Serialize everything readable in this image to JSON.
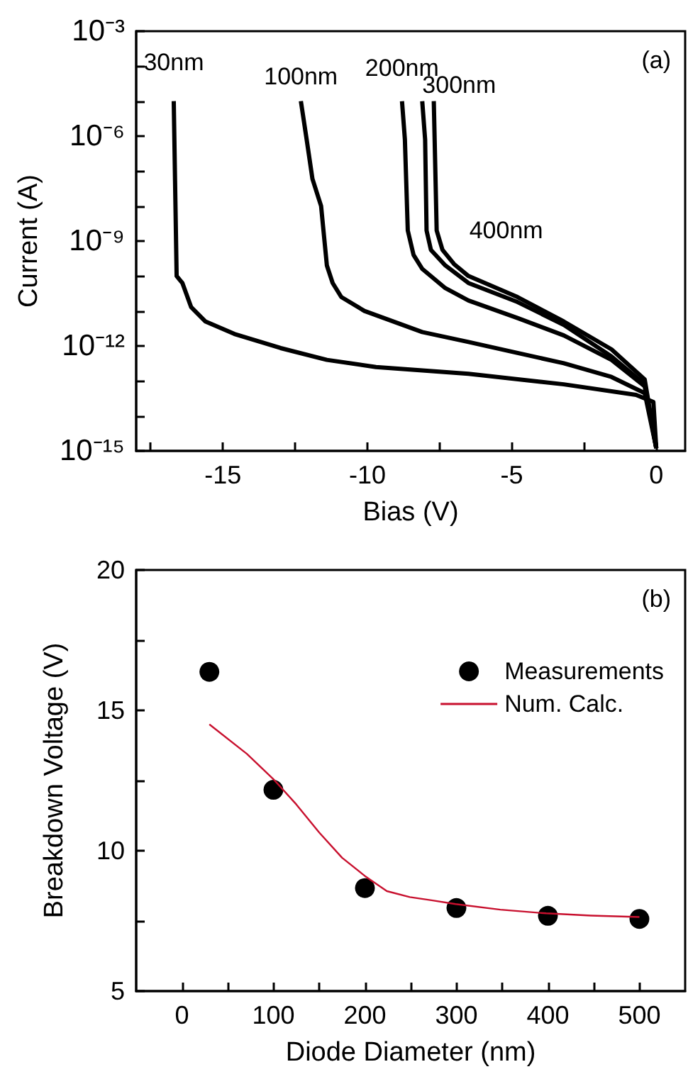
{
  "chart_data": [
    {
      "type": "line",
      "xlabel": "Bias (V)",
      "ylabel": "Current (A)",
      "annotations": [
        "(a)"
      ],
      "log": "y",
      "marker": "none",
      "legend": false,
      "xlim": [
        -18,
        1
      ],
      "xticks": [
        {
          "value": -17.5,
          "label": null
        },
        -15,
        {
          "value": -12.5,
          "label": null
        },
        -10,
        {
          "value": -7.5,
          "label": null
        },
        -5,
        {
          "value": -2.5,
          "label": null
        },
        0
      ],
      "ylim": [
        1e-15,
        0.001
      ],
      "yticks": [
        {
          "value": 1e-15,
          "label": "10⁻¹⁵"
        },
        {
          "value": 1e-14,
          "label": null
        },
        {
          "value": 1e-13,
          "label": null
        },
        {
          "value": 1e-12,
          "label": "10⁻¹²"
        },
        {
          "value": 1e-11,
          "label": null
        },
        {
          "value": 1e-10,
          "label": null
        },
        {
          "value": 1e-09,
          "label": "10⁻⁹"
        },
        {
          "value": 1e-08,
          "label": null
        },
        {
          "value": 1e-07,
          "label": null
        },
        {
          "value": 1e-06,
          "label": "10⁻⁶"
        },
        {
          "value": 1e-05,
          "label": null
        },
        {
          "value": 0.0001,
          "label": null
        },
        {
          "value": 0.001,
          "label": "10⁻³"
        }
      ],
      "series": [
        {
          "name": "30nm",
          "color": "#000000",
          "x": [
            -16.7,
            -16.6,
            -16.4,
            -16.1,
            -15.6,
            -14.6,
            -13.0,
            -11.4,
            -9.7,
            -6.5,
            -3.2,
            -0.7,
            -0.1,
            0
          ],
          "values": [
            1e-05,
            1e-10,
            6.3e-11,
            1.3e-11,
            5e-12,
            2.2e-12,
            8.7e-13,
            4e-13,
            2.5e-13,
            1.6e-13,
            8e-14,
            4e-14,
            2.5e-14,
            1.2e-15
          ]
        },
        {
          "name": "100nm",
          "color": "#000000",
          "x": [
            -12.3,
            -12.1,
            -11.9,
            -11.6,
            -11.4,
            -11.2,
            -10.9,
            -10.1,
            -8.1,
            -6.5,
            -4.8,
            -3.2,
            -1.55,
            -0.4,
            0
          ],
          "values": [
            1e-05,
            8e-07,
            6e-08,
            1e-08,
            2e-10,
            6.3e-11,
            2.5e-11,
            1e-11,
            2.5e-12,
            1.3e-12,
            6.3e-13,
            3.2e-13,
            1.3e-13,
            4.5e-14,
            1.2e-15
          ]
        },
        {
          "name": "200nm",
          "color": "#000000",
          "x": [
            -8.8,
            -8.7,
            -8.6,
            -8.4,
            -8.1,
            -7.3,
            -6.5,
            -4.8,
            -3.2,
            -1.55,
            -0.4,
            0
          ],
          "values": [
            1e-05,
            8e-07,
            2e-09,
            4e-10,
            1.6e-10,
            4.5e-11,
            2e-11,
            6.3e-12,
            2e-12,
            4e-13,
            7e-14,
            1.2e-15
          ]
        },
        {
          "name": "300nm",
          "color": "#000000",
          "x": [
            -8.1,
            -8.0,
            -7.95,
            -7.8,
            -7.3,
            -6.5,
            -4.8,
            -3.2,
            -1.55,
            -0.4,
            0
          ],
          "values": [
            1e-05,
            8e-07,
            2e-09,
            5.6e-10,
            2e-10,
            6.3e-11,
            1.8e-11,
            4e-12,
            5e-13,
            8e-14,
            1.2e-15
          ]
        },
        {
          "name": "400nm",
          "color": "#000000",
          "x": [
            -7.7,
            -7.6,
            -7.4,
            -7.0,
            -6.5,
            -4.8,
            -3.2,
            -1.55,
            -0.4,
            0
          ],
          "values": [
            1e-05,
            2e-09,
            5.6e-10,
            2.2e-10,
            1e-10,
            2.5e-11,
            5e-12,
            8e-13,
            1.1e-13,
            1.2e-15
          ]
        }
      ]
    },
    {
      "type": "scatter",
      "xlabel": "Diode Diameter (nm)",
      "ylabel": "Breakdown Voltage (V)",
      "annotations": [
        "(b)"
      ],
      "legend": "top right",
      "xlim": [
        -50,
        550
      ],
      "xticks": [
        0,
        {
          "value": 50,
          "label": null
        },
        100,
        {
          "value": 150,
          "label": null
        },
        200,
        {
          "value": 250,
          "label": null
        },
        300,
        {
          "value": 350,
          "label": null
        },
        400,
        {
          "value": 450,
          "label": null
        },
        500
      ],
      "ylim": [
        5,
        20
      ],
      "yticks": [
        5,
        {
          "value": 7.5,
          "label": null
        },
        10,
        {
          "value": 12.5,
          "label": null
        },
        15,
        {
          "value": 17.5,
          "label": null
        },
        20
      ],
      "series": [
        {
          "name": "Measurements",
          "type": "scatter",
          "marker": "circle",
          "color": "#000000",
          "x": [
            30,
            100,
            200,
            300,
            400,
            500
          ],
          "values": [
            16.37,
            12.17,
            8.67,
            7.96,
            7.68,
            7.57
          ]
        },
        {
          "name": "Num. Calc.",
          "type": "line",
          "marker": "none",
          "color": "#c8102e",
          "x": [
            30,
            71,
            100,
            125,
            150,
            175,
            200,
            224,
            249,
            274,
            299,
            348,
            398,
            447,
            500
          ],
          "values": [
            14.5,
            13.45,
            12.55,
            11.65,
            10.65,
            9.75,
            9.1,
            8.56,
            8.35,
            8.23,
            8.1,
            7.9,
            7.77,
            7.69,
            7.64
          ]
        }
      ]
    }
  ]
}
